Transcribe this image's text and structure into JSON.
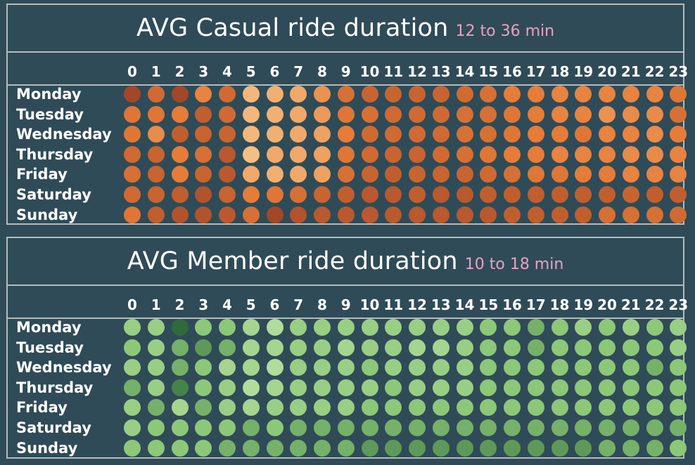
{
  "chart_data": [
    {
      "type": "heatmap",
      "title": "AVG Casual ride duration",
      "subtitle": "12 to 36 min",
      "unit": "min",
      "range": [
        12,
        36
      ],
      "x": [
        "0",
        "1",
        "2",
        "3",
        "4",
        "5",
        "6",
        "7",
        "8",
        "9",
        "10",
        "11",
        "12",
        "13",
        "14",
        "15",
        "16",
        "17",
        "18",
        "19",
        "20",
        "21",
        "22",
        "23"
      ],
      "y": [
        "Monday",
        "Tuesday",
        "Wednesday",
        "Thursday",
        "Friday",
        "Saturday",
        "Sunday"
      ],
      "color_low": "#f9d59b",
      "color_mid": "#e67c38",
      "color_high": "#8c3521",
      "values": [
        [
          33,
          27,
          33,
          23,
          27,
          16,
          17,
          18,
          21,
          26,
          28,
          28,
          28,
          28,
          27,
          26,
          24,
          24,
          23,
          23,
          23,
          23,
          23,
          25
        ],
        [
          25,
          25,
          24,
          29,
          27,
          16,
          17,
          18,
          20,
          25,
          26,
          27,
          27,
          27,
          26,
          26,
          25,
          24,
          23,
          23,
          21,
          22,
          22,
          26
        ],
        [
          25,
          22,
          29,
          28,
          28,
          16,
          17,
          18,
          19,
          24,
          27,
          27,
          27,
          27,
          26,
          26,
          25,
          24,
          24,
          25,
          23,
          23,
          22,
          24
        ],
        [
          27,
          28,
          24,
          26,
          30,
          15,
          18,
          18,
          19,
          25,
          27,
          28,
          28,
          27,
          26,
          25,
          24,
          24,
          23,
          23,
          23,
          22,
          22,
          23
        ],
        [
          26,
          28,
          24,
          28,
          30,
          18,
          17,
          18,
          19,
          26,
          28,
          29,
          28,
          28,
          28,
          27,
          26,
          25,
          25,
          24,
          24,
          23,
          23,
          23
        ],
        [
          27,
          28,
          29,
          31,
          28,
          24,
          25,
          26,
          28,
          29,
          30,
          30,
          29,
          30,
          30,
          29,
          29,
          29,
          29,
          29,
          29,
          28,
          29,
          29
        ],
        [
          25,
          29,
          31,
          31,
          30,
          26,
          33,
          31,
          30,
          30,
          30,
          30,
          30,
          30,
          30,
          30,
          29,
          29,
          29,
          29,
          26,
          26,
          26,
          27
        ]
      ]
    },
    {
      "type": "heatmap",
      "title": "AVG Member ride duration",
      "subtitle": "10 to 18 min",
      "unit": "min",
      "range": [
        10,
        18
      ],
      "x": [
        "0",
        "1",
        "2",
        "3",
        "4",
        "5",
        "6",
        "7",
        "8",
        "9",
        "10",
        "11",
        "12",
        "13",
        "14",
        "15",
        "16",
        "17",
        "18",
        "19",
        "20",
        "21",
        "22",
        "23"
      ],
      "y": [
        "Monday",
        "Tuesday",
        "Wednesday",
        "Thursday",
        "Friday",
        "Saturday",
        "Sunday"
      ],
      "color_low": "#bfe2a8",
      "color_mid": "#8cc878",
      "color_high": "#2f6a3a",
      "values": [
        [
          13,
          13,
          18,
          14,
          14,
          12,
          11,
          13,
          13,
          13,
          13,
          13,
          13,
          13,
          13,
          14,
          14,
          15,
          14,
          13,
          14,
          13,
          14,
          13
        ],
        [
          14,
          13,
          15,
          16,
          15,
          12,
          12,
          13,
          13,
          12,
          13,
          13,
          12,
          12,
          13,
          14,
          14,
          15,
          14,
          14,
          14,
          14,
          14,
          13
        ],
        [
          13,
          13,
          15,
          14,
          12,
          12,
          11,
          13,
          13,
          13,
          14,
          13,
          13,
          13,
          13,
          14,
          14,
          14,
          14,
          14,
          14,
          14,
          15,
          14
        ],
        [
          15,
          13,
          17,
          14,
          13,
          11,
          12,
          13,
          13,
          13,
          13,
          14,
          13,
          13,
          13,
          14,
          14,
          14,
          14,
          14,
          14,
          14,
          14,
          14
        ],
        [
          13,
          15,
          12,
          15,
          13,
          12,
          13,
          13,
          13,
          13,
          14,
          14,
          14,
          14,
          14,
          14,
          14,
          14,
          14,
          14,
          14,
          14,
          14,
          14
        ],
        [
          13,
          14,
          14,
          14,
          14,
          15,
          14,
          15,
          15,
          15,
          15,
          15,
          15,
          15,
          15,
          15,
          15,
          15,
          15,
          15,
          15,
          15,
          15,
          15
        ],
        [
          14,
          14,
          14,
          14,
          15,
          15,
          15,
          15,
          15,
          15,
          16,
          16,
          16,
          16,
          16,
          16,
          16,
          16,
          16,
          16,
          15,
          15,
          15,
          14
        ]
      ]
    }
  ]
}
